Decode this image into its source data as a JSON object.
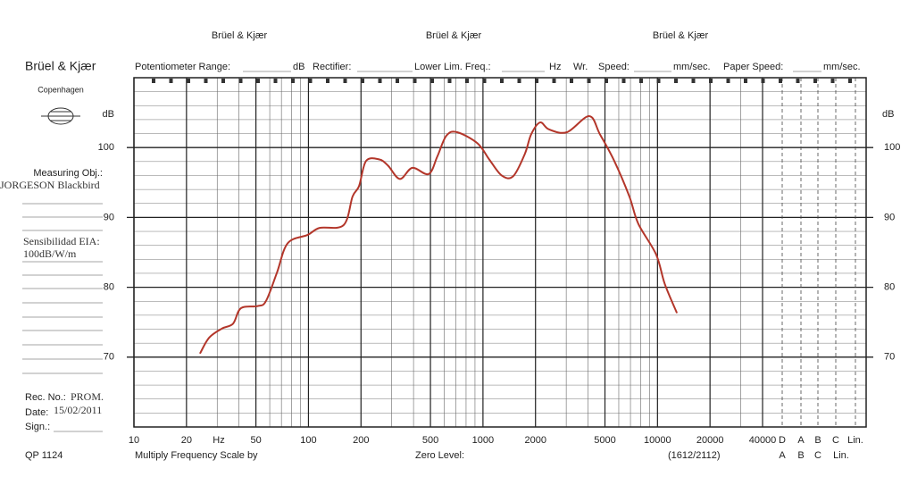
{
  "form": {
    "brand_headers": [
      "Brüel & Kjær",
      "Brüel & Kjær",
      "Brüel & Kjær"
    ],
    "brand": "Brüel & Kjær",
    "city": "Copenhagen",
    "header_fields": [
      "Potentiometer Range:",
      "dB",
      "Rectifier:",
      "Lower Lim. Freq.:",
      "Hz",
      "Wr.",
      "Speed:",
      "mm/sec.",
      "Paper Speed:",
      "mm/sec."
    ],
    "measuring_obj_label": "Measuring Obj.:",
    "measuring_obj_value": "JORGESON Blackbird",
    "sensitivity_label": "Sensibilidad EIA:",
    "sensitivity_value": "100dB/W/m",
    "rec_no_label": "Rec. No.:",
    "rec_no_value": "PROM.",
    "date_label": "Date:",
    "date_value": "15/02/2011",
    "sign_label": "Sign.:",
    "form_number": "QP 1124",
    "multiply_label": "Multiply Frequency Scale by",
    "zero_level_label": "Zero Level:",
    "paper_code": "(1612/2112)"
  },
  "chart_data": {
    "type": "line",
    "log_x": true,
    "grid": true,
    "y_unit": "dB",
    "x_unit": "Hz",
    "x": [
      24,
      27,
      32,
      37,
      41,
      51,
      57,
      66,
      76,
      99,
      116,
      159,
      179,
      195,
      214,
      255,
      286,
      334,
      394,
      488,
      547,
      617,
      711,
      931,
      1086,
      1280,
      1490,
      1738,
      1889,
      2125,
      2390,
      3030,
      4060,
      4680,
      5650,
      6900,
      7760,
      9820,
      11000,
      12880
    ],
    "series": [
      {
        "color": "#b3362a",
        "values": [
          70.6,
          72.8,
          74.1,
          74.8,
          77.0,
          77.3,
          78.0,
          82.1,
          86.3,
          87.5,
          88.5,
          88.9,
          93.0,
          94.5,
          98.1,
          98.3,
          97.4,
          95.5,
          97.1,
          96.2,
          98.7,
          101.7,
          102.2,
          100.6,
          98.3,
          96.0,
          95.9,
          99.1,
          101.9,
          103.6,
          102.6,
          102.2,
          104.5,
          101.9,
          98.1,
          93.0,
          89.1,
          84.7,
          80.5,
          76.4
        ]
      }
    ],
    "xlim": [
      10,
      40000
    ],
    "xticks": [
      10,
      20,
      50,
      100,
      200,
      500,
      1000,
      2000,
      5000,
      10000,
      20000,
      40000
    ],
    "ylim": [
      60,
      110
    ],
    "yticks": [
      70,
      80,
      90,
      100
    ],
    "extra_columns": [
      "D",
      "A",
      "B",
      "C",
      "Lin."
    ],
    "extra_columns_2": [
      "A",
      "B",
      "C",
      "Lin."
    ]
  }
}
